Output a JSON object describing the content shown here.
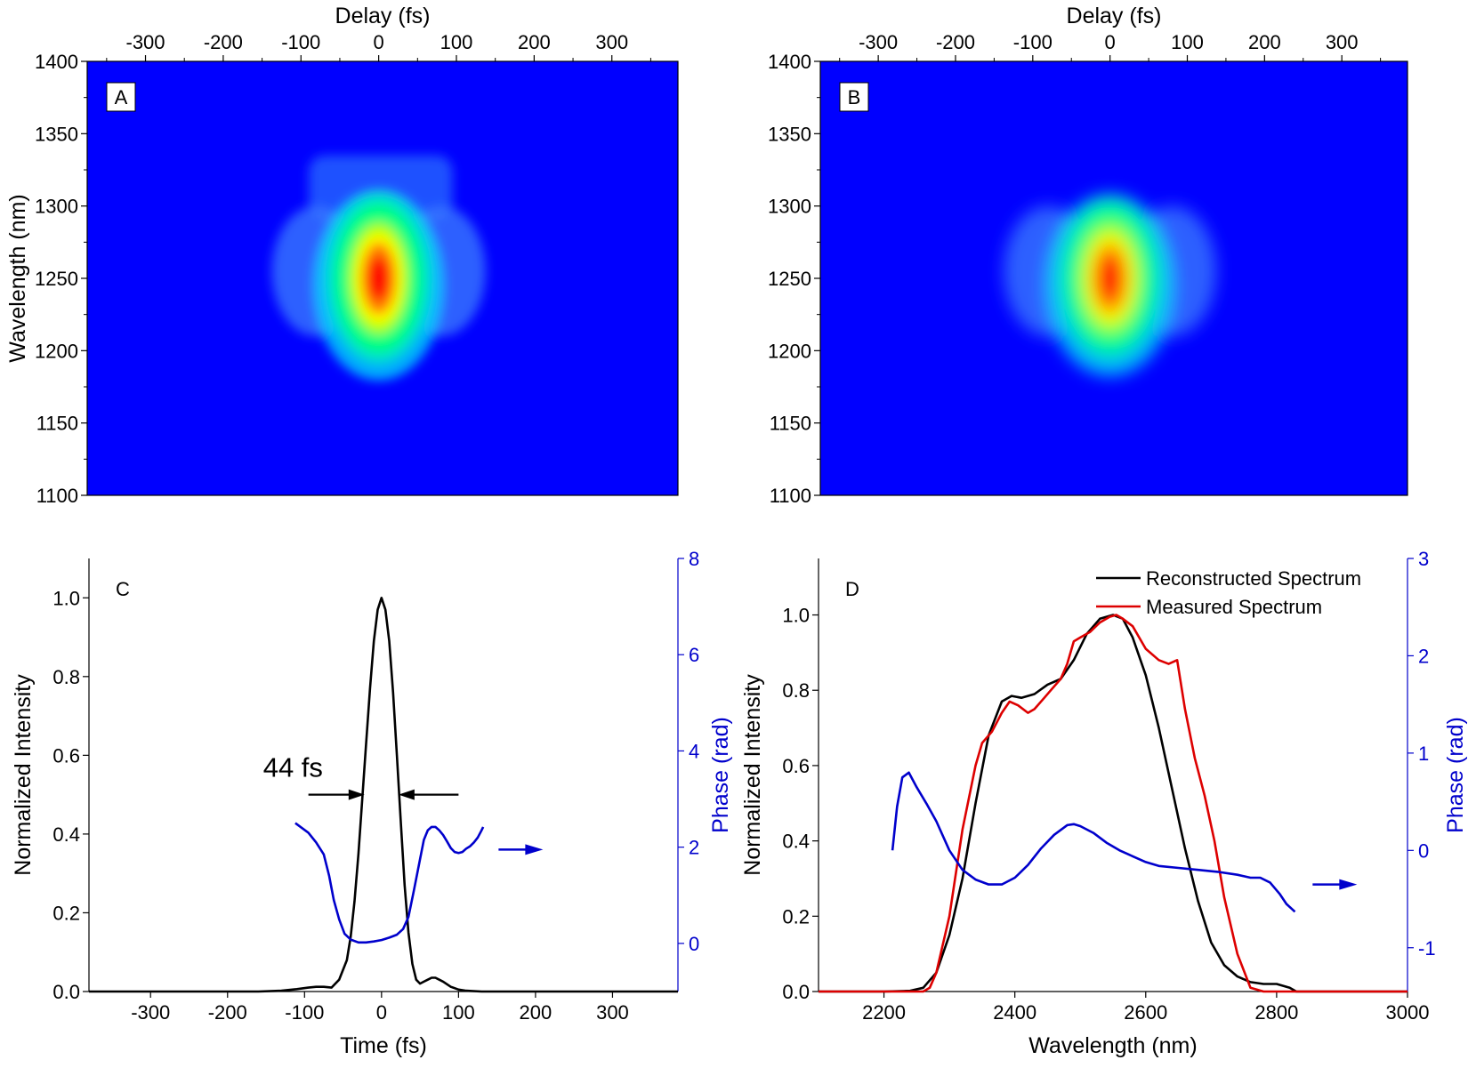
{
  "chart_data": [
    {
      "panel": "A",
      "type": "heatmap",
      "xlabel": "Delay (fs)",
      "ylabel": "Wavelength (nm)",
      "xlim": [
        -375,
        385
      ],
      "ylim": [
        1100,
        1400
      ],
      "x_ticks": [
        -300,
        -200,
        -100,
        0,
        100,
        200,
        300
      ],
      "y_ticks": [
        1100,
        1150,
        1200,
        1250,
        1300,
        1350,
        1400
      ],
      "x_axis_position": "top",
      "background_color": "#0000ff",
      "peak": {
        "delay": 0,
        "wavelength": 1250
      },
      "description_features": {
        "central_lobe": {
          "delay_center": 0,
          "delay_fwhm": 50,
          "wavelength_range": [
            1180,
            1305
          ]
        },
        "side_lobes_delay": [
          -80,
          80
        ],
        "side_lobes_wavelength": 1255,
        "upper_faint_region": {
          "delay_range": [
            -90,
            95
          ],
          "wavelength_range": [
            1290,
            1335
          ]
        }
      },
      "colorscale": [
        "#0000ff",
        "#00c8ff",
        "#00ff80",
        "#ffff00",
        "#ff8000",
        "#ff0000"
      ]
    },
    {
      "panel": "B",
      "type": "heatmap",
      "xlabel": "Delay (fs)",
      "ylabel": "",
      "xlim": [
        -375,
        385
      ],
      "ylim": [
        1100,
        1400
      ],
      "x_ticks": [
        -300,
        -200,
        -100,
        0,
        100,
        200,
        300
      ],
      "y_ticks": [
        1100,
        1150,
        1200,
        1250,
        1300,
        1350,
        1400
      ],
      "x_axis_position": "top",
      "background_color": "#0000ff",
      "peak": {
        "delay": 0,
        "wavelength": 1250
      },
      "description_features": {
        "central_lobe": {
          "delay_center": 0,
          "delay_fwhm": 50,
          "wavelength_range": [
            1185,
            1305
          ]
        },
        "side_lobes_delay": [
          -80,
          80
        ],
        "side_lobes_wavelength": 1255
      },
      "colorscale": [
        "#0000ff",
        "#00c8ff",
        "#00ff80",
        "#ffff00",
        "#ff8000",
        "#ff0000"
      ]
    },
    {
      "panel": "C",
      "type": "line",
      "xlabel": "Time (fs)",
      "ylabel": "Normalized Intensity",
      "y2label": "Phase (rad)",
      "xlim": [
        -380,
        385
      ],
      "ylim": [
        0,
        1.1
      ],
      "y2lim": [
        -1,
        8
      ],
      "x_ticks": [
        -300,
        -200,
        -100,
        0,
        100,
        200,
        300
      ],
      "y_ticks": [
        0.0,
        0.2,
        0.4,
        0.6,
        0.8,
        1.0
      ],
      "y2_ticks": [
        0,
        2,
        4,
        6,
        8
      ],
      "annotation": "44 fs",
      "series": [
        {
          "axis": "left",
          "color": "#000000",
          "x": [
            -380,
            -160,
            -130,
            -110,
            -95,
            -85,
            -75,
            -65,
            -55,
            -45,
            -40,
            -35,
            -30,
            -25,
            -20,
            -15,
            -10,
            -5,
            0,
            5,
            10,
            15,
            20,
            25,
            30,
            35,
            40,
            45,
            50,
            55,
            60,
            65,
            70,
            75,
            80,
            90,
            100,
            110,
            130,
            385
          ],
          "y": [
            0,
            0,
            0.002,
            0.006,
            0.01,
            0.012,
            0.012,
            0.01,
            0.03,
            0.08,
            0.14,
            0.23,
            0.35,
            0.49,
            0.63,
            0.77,
            0.89,
            0.97,
            1.0,
            0.97,
            0.89,
            0.76,
            0.6,
            0.43,
            0.27,
            0.15,
            0.07,
            0.03,
            0.02,
            0.025,
            0.03,
            0.035,
            0.035,
            0.03,
            0.025,
            0.012,
            0.005,
            0.002,
            0,
            0
          ]
        },
        {
          "axis": "right",
          "color": "#0000cc",
          "x": [
            -112,
            -95,
            -85,
            -75,
            -68,
            -62,
            -55,
            -48,
            -40,
            -30,
            -20,
            -10,
            0,
            10,
            20,
            28,
            35,
            42,
            50,
            55,
            60,
            65,
            70,
            75,
            80,
            85,
            90,
            95,
            100,
            105,
            110,
            115,
            120,
            125,
            130,
            132
          ],
          "y": [
            2.5,
            2.3,
            2.1,
            1.85,
            1.4,
            0.9,
            0.5,
            0.2,
            0.08,
            0.02,
            0.02,
            0.04,
            0.07,
            0.12,
            0.18,
            0.3,
            0.55,
            1.1,
            1.75,
            2.15,
            2.35,
            2.42,
            2.42,
            2.35,
            2.25,
            2.12,
            1.98,
            1.9,
            1.88,
            1.9,
            1.97,
            2.02,
            2.1,
            2.2,
            2.35,
            2.42
          ]
        }
      ]
    },
    {
      "panel": "D",
      "type": "line",
      "xlabel": "Wavelength (nm)",
      "ylabel": "Normalized Intensity",
      "y2label": "Phase (rad)",
      "xlim": [
        2100,
        3000
      ],
      "ylim": [
        0,
        1.15
      ],
      "y2lim": [
        -1.45,
        3
      ],
      "x_ticks": [
        2200,
        2400,
        2600,
        2800,
        3000
      ],
      "y_ticks": [
        0.0,
        0.2,
        0.4,
        0.6,
        0.8,
        1.0
      ],
      "y2_ticks": [
        -1,
        0,
        1,
        2,
        3
      ],
      "legend_position": "top-right",
      "series": [
        {
          "name": "Reconstructed Spectrum",
          "axis": "left",
          "color": "#000000",
          "x": [
            2100,
            2200,
            2240,
            2260,
            2280,
            2300,
            2320,
            2340,
            2360,
            2380,
            2395,
            2410,
            2430,
            2450,
            2470,
            2490,
            2510,
            2530,
            2550,
            2565,
            2580,
            2600,
            2620,
            2640,
            2660,
            2680,
            2700,
            2720,
            2740,
            2760,
            2780,
            2800,
            2820,
            2830,
            3000
          ],
          "y": [
            0,
            0,
            0.002,
            0.01,
            0.05,
            0.15,
            0.3,
            0.5,
            0.68,
            0.77,
            0.785,
            0.78,
            0.79,
            0.815,
            0.83,
            0.88,
            0.95,
            0.99,
            1.0,
            0.99,
            0.94,
            0.84,
            0.7,
            0.54,
            0.38,
            0.24,
            0.13,
            0.07,
            0.04,
            0.025,
            0.02,
            0.02,
            0.01,
            0.0,
            0
          ]
        },
        {
          "name": "Measured Spectrum",
          "axis": "left",
          "color": "#dd0000",
          "x": [
            2100,
            2220,
            2260,
            2270,
            2280,
            2300,
            2320,
            2340,
            2350,
            2365,
            2380,
            2392,
            2405,
            2420,
            2430,
            2445,
            2455,
            2470,
            2480,
            2490,
            2500,
            2515,
            2530,
            2545,
            2555,
            2565,
            2580,
            2600,
            2620,
            2635,
            2648,
            2660,
            2675,
            2690,
            2705,
            2720,
            2740,
            2760,
            2780,
            3000
          ],
          "y": [
            0,
            0,
            0.0,
            0.01,
            0.05,
            0.2,
            0.43,
            0.6,
            0.66,
            0.69,
            0.74,
            0.77,
            0.76,
            0.74,
            0.75,
            0.78,
            0.8,
            0.83,
            0.87,
            0.93,
            0.94,
            0.955,
            0.98,
            0.995,
            1.0,
            0.99,
            0.97,
            0.91,
            0.88,
            0.87,
            0.88,
            0.75,
            0.62,
            0.52,
            0.4,
            0.25,
            0.1,
            0.01,
            0,
            0
          ]
        },
        {
          "axis": "right",
          "color": "#0000cc",
          "x": [
            2213,
            2220,
            2228,
            2238,
            2250,
            2265,
            2280,
            2300,
            2320,
            2340,
            2360,
            2380,
            2400,
            2420,
            2440,
            2460,
            2480,
            2490,
            2500,
            2520,
            2540,
            2560,
            2580,
            2600,
            2620,
            2650,
            2680,
            2710,
            2740,
            2760,
            2775,
            2790,
            2805,
            2815,
            2828
          ],
          "y": [
            0.0,
            0.45,
            0.75,
            0.8,
            0.65,
            0.48,
            0.3,
            0.0,
            -0.2,
            -0.3,
            -0.35,
            -0.35,
            -0.28,
            -0.15,
            0.02,
            0.16,
            0.26,
            0.27,
            0.25,
            0.18,
            0.08,
            0.0,
            -0.06,
            -0.12,
            -0.16,
            -0.18,
            -0.2,
            -0.22,
            -0.25,
            -0.28,
            -0.28,
            -0.33,
            -0.45,
            -0.55,
            -0.63
          ]
        }
      ]
    }
  ],
  "panels": {
    "a": {
      "label": "A"
    },
    "b": {
      "label": "B"
    },
    "c": {
      "label": "C",
      "annotation": "44 fs"
    },
    "d": {
      "label": "D",
      "legend": [
        "Reconstructed Spectrum",
        "Measured Spectrum"
      ]
    }
  },
  "colors": {
    "phase": "#0000cc",
    "intensity": "#000000",
    "measured": "#dd0000",
    "heatmap_background": "#0000ff"
  }
}
